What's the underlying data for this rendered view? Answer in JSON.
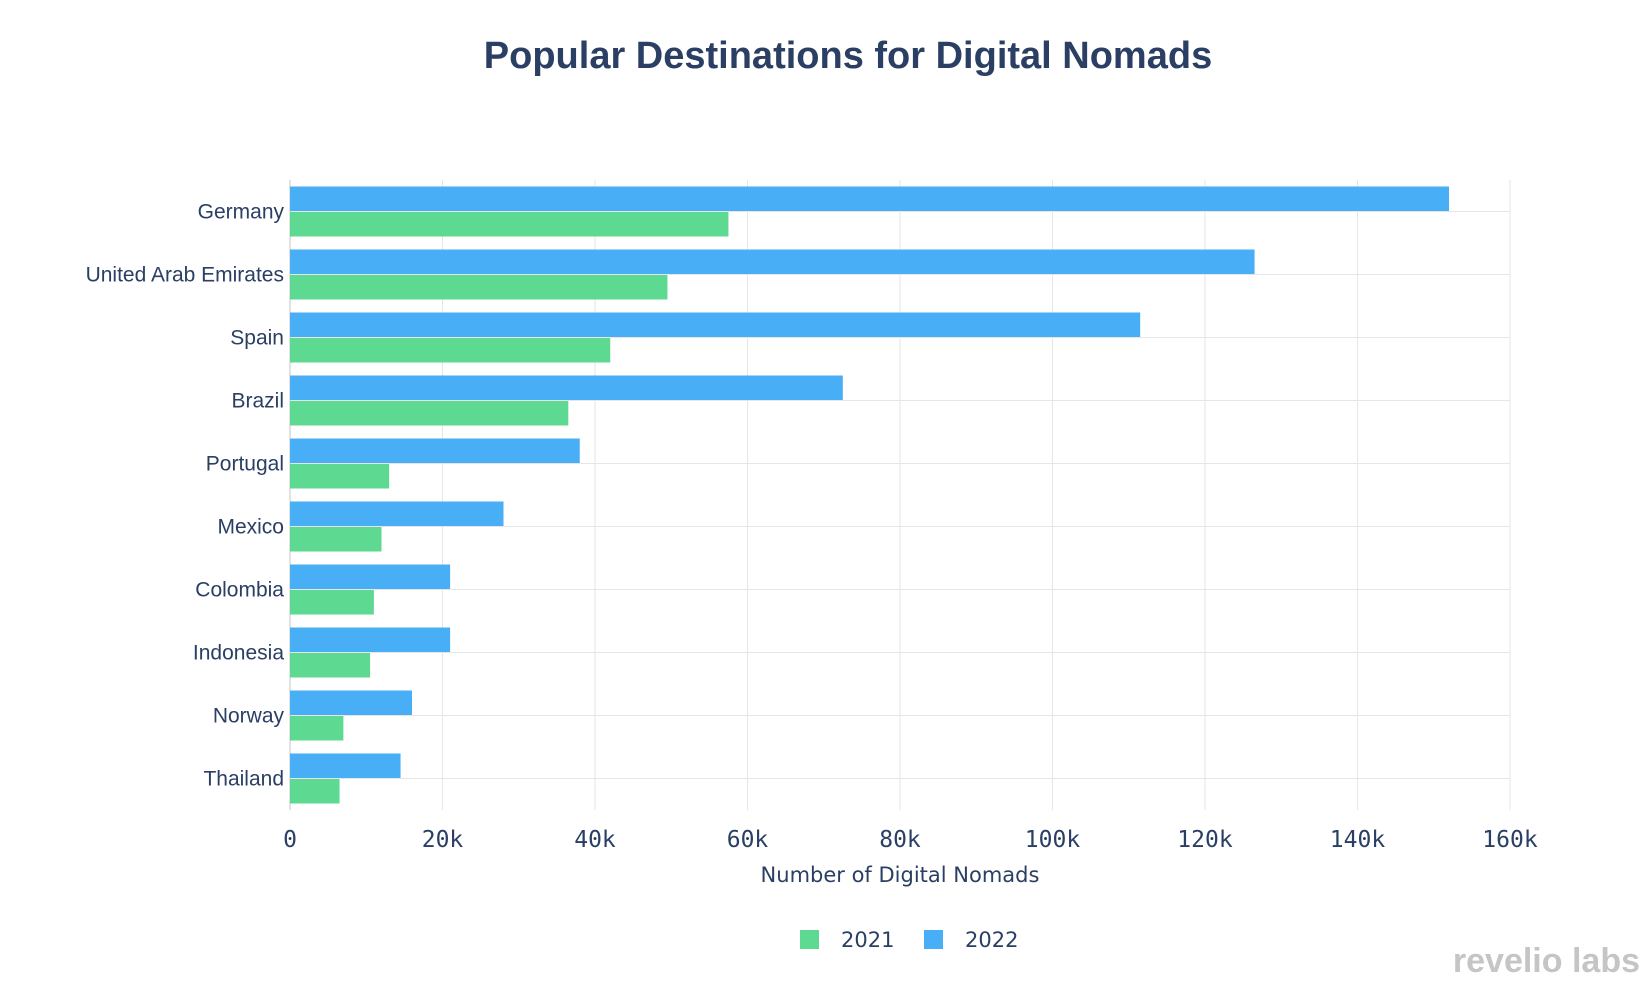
{
  "chart_data": {
    "type": "bar",
    "orientation": "horizontal",
    "title": "Popular Destinations for Digital Nomads",
    "xlabel": "Number of Digital Nomads",
    "ylabel": "",
    "xlim": [
      0,
      160000
    ],
    "x_ticks": [
      {
        "value": 0,
        "label": "0"
      },
      {
        "value": 20000,
        "label": "20k"
      },
      {
        "value": 40000,
        "label": "40k"
      },
      {
        "value": 60000,
        "label": "60k"
      },
      {
        "value": 80000,
        "label": "80k"
      },
      {
        "value": 100000,
        "label": "100k"
      },
      {
        "value": 120000,
        "label": "120k"
      },
      {
        "value": 140000,
        "label": "140k"
      },
      {
        "value": 160000,
        "label": "160k"
      }
    ],
    "categories": [
      "Germany",
      "United Arab Emirates",
      "Spain",
      "Brazil",
      "Portugal",
      "Mexico",
      "Colombia",
      "Indonesia",
      "Norway",
      "Thailand"
    ],
    "series": [
      {
        "name": "2021",
        "color": "#5dd992",
        "values": [
          57500,
          49500,
          42000,
          36500,
          13000,
          12000,
          11000,
          10500,
          7000,
          6500
        ]
      },
      {
        "name": "2022",
        "color": "#48aef5",
        "values": [
          152000,
          126500,
          111500,
          72500,
          38000,
          28000,
          21000,
          21000,
          16000,
          14500
        ]
      }
    ],
    "grid": true,
    "legend_position": "bottom-center"
  },
  "brand": {
    "logo_text": "revelio labs"
  }
}
